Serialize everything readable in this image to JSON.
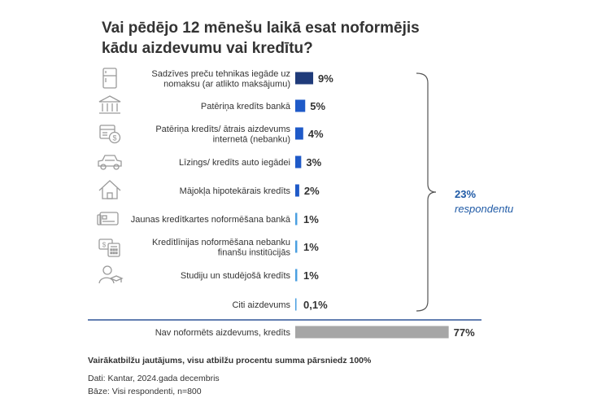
{
  "title_line1": "Vai pēdējo 12 mēnešu laikā esat noformējis",
  "title_line2": "kādu aizdevumu vai kredītu?",
  "chart_data": {
    "type": "bar",
    "orientation": "horizontal",
    "categories": [
      [
        "Sadzīves preču tehnikas iegāde uz",
        "nomaksu (ar atlikto maksājumu)"
      ],
      [
        "Patēriņa kredīts bankā"
      ],
      [
        "Patēriņa kredīts/ ātrais aizdevums",
        "internetā (nebanku)"
      ],
      [
        "Līzings/ kredīts auto iegādei"
      ],
      [
        "Mājokļa hipotekārais kredīts"
      ],
      [
        "Jaunas kredītkartes noformēšana bankā"
      ],
      [
        "Kredītlīnijas noformēšana nebanku",
        "finanšu institūcijās"
      ],
      [
        "Studiju un studējošā kredīts"
      ],
      [
        "Citi aizdevums"
      ]
    ],
    "values": [
      9,
      5,
      4,
      3,
      2,
      1,
      1,
      1,
      0.1
    ],
    "value_labels": [
      "9%",
      "5%",
      "4%",
      "3%",
      "2%",
      "1%",
      "1%",
      "1%",
      "0,1%"
    ],
    "icons": [
      "fridge-icon",
      "bank-icon",
      "online-loan-icon",
      "car-icon",
      "house-icon",
      "credit-card-icon",
      "calculator-icon",
      "student-icon",
      ""
    ],
    "bar_colors": [
      "#1f3b7a",
      "#1f5ac8",
      "#1f5ac8",
      "#1f5ac8",
      "#1f5ac8",
      "#4a9fe0",
      "#4a9fe0",
      "#4a9fe0",
      "#4a9fe0"
    ],
    "bracket_value": "23%",
    "bracket_label": "respondentu",
    "bracket_color": "#1f5aa6",
    "separate_category": "Nav noformēts aizdevums, kredīts",
    "separate_value": 77,
    "separate_value_label": "77%",
    "separate_color": "#a6a6a6",
    "divider_color": "#2f5597"
  },
  "footnote_bold": "Vairākatbilžu jautājums, visu atbilžu procentu summa pārsniedz 100%",
  "footnote_source": "Dati: Kantar, 2024.gada decembris",
  "footnote_base": "Bāze: Visi respondenti, n=800"
}
